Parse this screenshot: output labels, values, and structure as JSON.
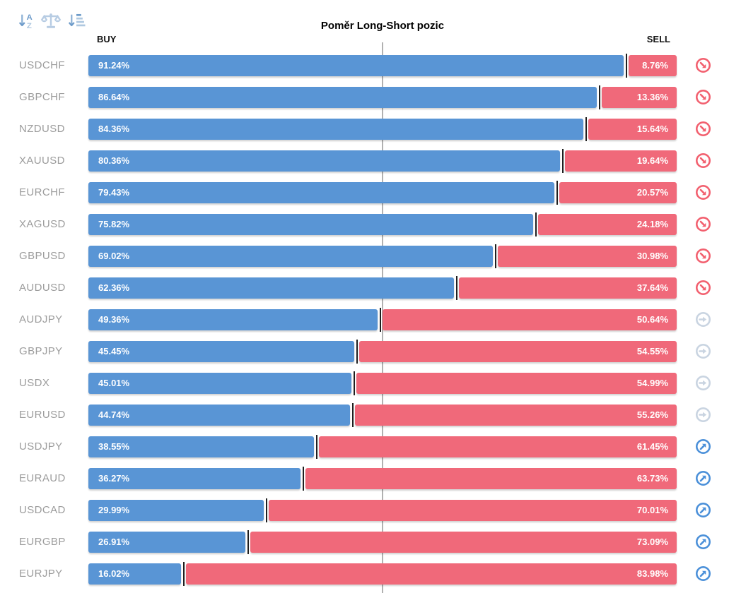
{
  "title": "Poměr Long-Short pozic",
  "columns": {
    "buy_label": "BUY",
    "sell_label": "SELL"
  },
  "toolbar": {
    "sort_alphabetical_icon": "sort-alphabetical",
    "balance_scale_icon": "balance-scale",
    "sort_amount_icon": "sort-by-amount"
  },
  "colors": {
    "buy_bar": "#5995D5",
    "sell_bar": "#F0697A",
    "bar_divider": "#1F1F1F",
    "center_line": "#B1B1B1",
    "pair_label": "#9C9C9C",
    "signal_sell": "#F2606F",
    "signal_neutral": "#C9D4E1",
    "signal_buy": "#4B90D9",
    "toolbar_icon_medium": "#6D9BCA",
    "toolbar_icon_light": "#B7CCE3"
  },
  "rows": [
    {
      "pair": "USDCHF",
      "buy_label": "91.24%",
      "sell_label": "8.76%",
      "buy": 91.24,
      "sell": 8.76,
      "signal": "sell"
    },
    {
      "pair": "GBPCHF",
      "buy_label": "86.64%",
      "sell_label": "13.36%",
      "buy": 86.64,
      "sell": 13.36,
      "signal": "sell"
    },
    {
      "pair": "NZDUSD",
      "buy_label": "84.36%",
      "sell_label": "15.64%",
      "buy": 84.36,
      "sell": 15.64,
      "signal": "sell"
    },
    {
      "pair": "XAUUSD",
      "buy_label": "80.36%",
      "sell_label": "19.64%",
      "buy": 80.36,
      "sell": 19.64,
      "signal": "sell"
    },
    {
      "pair": "EURCHF",
      "buy_label": "79.43%",
      "sell_label": "20.57%",
      "buy": 79.43,
      "sell": 20.57,
      "signal": "sell"
    },
    {
      "pair": "XAGUSD",
      "buy_label": "75.82%",
      "sell_label": "24.18%",
      "buy": 75.82,
      "sell": 24.18,
      "signal": "sell"
    },
    {
      "pair": "GBPUSD",
      "buy_label": "69.02%",
      "sell_label": "30.98%",
      "buy": 69.02,
      "sell": 30.98,
      "signal": "sell"
    },
    {
      "pair": "AUDUSD",
      "buy_label": "62.36%",
      "sell_label": "37.64%",
      "buy": 62.36,
      "sell": 37.64,
      "signal": "sell"
    },
    {
      "pair": "AUDJPY",
      "buy_label": "49.36%",
      "sell_label": "50.64%",
      "buy": 49.36,
      "sell": 50.64,
      "signal": "neutral"
    },
    {
      "pair": "GBPJPY",
      "buy_label": "45.45%",
      "sell_label": "54.55%",
      "buy": 45.45,
      "sell": 54.55,
      "signal": "neutral"
    },
    {
      "pair": "USDX",
      "buy_label": "45.01%",
      "sell_label": "54.99%",
      "buy": 45.01,
      "sell": 54.99,
      "signal": "neutral"
    },
    {
      "pair": "EURUSD",
      "buy_label": "44.74%",
      "sell_label": "55.26%",
      "buy": 44.74,
      "sell": 55.26,
      "signal": "neutral"
    },
    {
      "pair": "USDJPY",
      "buy_label": "38.55%",
      "sell_label": "61.45%",
      "buy": 38.55,
      "sell": 61.45,
      "signal": "buy"
    },
    {
      "pair": "EURAUD",
      "buy_label": "36.27%",
      "sell_label": "63.73%",
      "buy": 36.27,
      "sell": 63.73,
      "signal": "buy"
    },
    {
      "pair": "USDCAD",
      "buy_label": "29.99%",
      "sell_label": "70.01%",
      "buy": 29.99,
      "sell": 70.01,
      "signal": "buy"
    },
    {
      "pair": "EURGBP",
      "buy_label": "26.91%",
      "sell_label": "73.09%",
      "buy": 26.91,
      "sell": 73.09,
      "signal": "buy"
    },
    {
      "pair": "EURJPY",
      "buy_label": "16.02%",
      "sell_label": "83.98%",
      "buy": 16.02,
      "sell": 83.98,
      "signal": "buy"
    }
  ],
  "chart_data": {
    "type": "bar",
    "orientation": "horizontal-stacked",
    "title": "Poměr Long-Short pozic",
    "categories": [
      "USDCHF",
      "GBPCHF",
      "NZDUSD",
      "XAUUSD",
      "EURCHF",
      "XAGUSD",
      "GBPUSD",
      "AUDUSD",
      "AUDJPY",
      "GBPJPY",
      "USDX",
      "EURUSD",
      "USDJPY",
      "EURAUD",
      "USDCAD",
      "EURGBP",
      "EURJPY"
    ],
    "series": [
      {
        "name": "BUY",
        "color": "#5995D5",
        "values": [
          91.24,
          86.64,
          84.36,
          80.36,
          79.43,
          75.82,
          69.02,
          62.36,
          49.36,
          45.45,
          45.01,
          44.74,
          38.55,
          36.27,
          29.99,
          26.91,
          16.02
        ]
      },
      {
        "name": "SELL",
        "color": "#F0697A",
        "values": [
          8.76,
          13.36,
          15.64,
          19.64,
          20.57,
          24.18,
          30.98,
          37.64,
          50.64,
          54.55,
          54.99,
          55.26,
          61.45,
          63.73,
          70.01,
          73.09,
          83.98
        ]
      }
    ],
    "xlim": [
      0,
      100
    ],
    "center_line_at": 50,
    "grid": false,
    "legend": false,
    "value_labels": "inside-bars"
  }
}
